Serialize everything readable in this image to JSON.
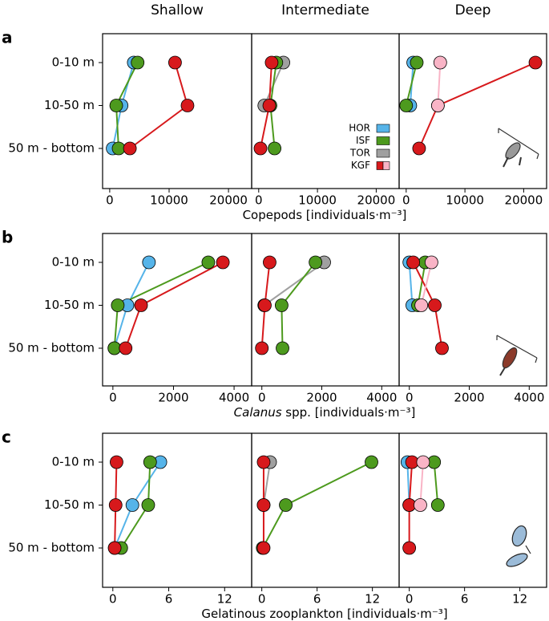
{
  "column_titles": [
    "Shallow",
    "Intermediate",
    "Deep"
  ],
  "chart_data": [
    {
      "type": "line",
      "panel_label": "a",
      "xlabel": [
        {
          "text": "Copepods [individuals·m⁻³]",
          "italic": false
        }
      ],
      "categories": [
        "0-10 m",
        "10-50 m",
        "50 m - bottom"
      ],
      "xlim": [
        -1200,
        23900
      ],
      "xticks": [
        0,
        10000,
        20000
      ],
      "legend": [
        {
          "name": "HOR",
          "colors": [
            "#56b4e9"
          ]
        },
        {
          "name": "ISF",
          "colors": [
            "#4d9a1e"
          ]
        },
        {
          "name": "TOR",
          "colors": [
            "#a0a0a0"
          ]
        },
        {
          "name": "KGF",
          "colors": [
            "#d7191c",
            "#f9b4c6"
          ]
        }
      ],
      "panels": [
        {
          "series": [
            {
              "name": "HOR",
              "color": "#56b4e9",
              "values": [
                4050,
                2000,
                500
              ]
            },
            {
              "name": "ISF",
              "color": "#4d9a1e",
              "values": [
                4700,
                1100,
                1500
              ]
            },
            {
              "name": "KGF",
              "color": "#d7191c",
              "values": [
                11000,
                13100,
                3400
              ]
            }
          ]
        },
        {
          "series": [
            {
              "name": "TOR",
              "color": "#a0a0a0",
              "values": [
                4200,
                950,
                null
              ]
            },
            {
              "name": "ISF",
              "color": "#4d9a1e",
              "values": [
                3000,
                2000,
                2700
              ]
            },
            {
              "name": "KGF",
              "color": "#d7191c",
              "values": [
                2200,
                1800,
                300
              ]
            }
          ]
        },
        {
          "series": [
            {
              "name": "HOR",
              "color": "#56b4e9",
              "values": [
                1200,
                700,
                null
              ]
            },
            {
              "name": "ISF",
              "color": "#4d9a1e",
              "values": [
                1800,
                0,
                null
              ]
            },
            {
              "name": "KGF",
              "color": "#d7191c",
              "values": [
                22000,
                5400,
                2200
              ]
            },
            {
              "name": "KGF",
              "color": "#f9b4c6",
              "values": [
                5800,
                5400,
                null
              ]
            }
          ]
        }
      ]
    },
    {
      "type": "line",
      "panel_label": "b",
      "xlabel": [
        {
          "text": "Calanus",
          "italic": true
        },
        {
          "text": " spp. [individuals·m⁻³]",
          "italic": false
        }
      ],
      "categories": [
        "0-10 m",
        "10-50 m",
        "50 m - bottom"
      ],
      "xlim": [
        -340,
        4580
      ],
      "xticks": [
        0,
        2000,
        4000
      ],
      "panels": [
        {
          "series": [
            {
              "name": "HOR",
              "color": "#56b4e9",
              "values": [
                1190,
                480,
                50
              ]
            },
            {
              "name": "ISF",
              "color": "#4d9a1e",
              "values": [
                3150,
                160,
                50
              ]
            },
            {
              "name": "KGF",
              "color": "#d7191c",
              "values": [
                3630,
                930,
                420
              ]
            }
          ]
        },
        {
          "series": [
            {
              "name": "TOR",
              "color": "#a0a0a0",
              "values": [
                2080,
                80,
                null
              ]
            },
            {
              "name": "ISF",
              "color": "#4d9a1e",
              "values": [
                1790,
                660,
                690
              ]
            },
            {
              "name": "KGF",
              "color": "#d7191c",
              "values": [
                260,
                100,
                0
              ]
            }
          ]
        },
        {
          "series": [
            {
              "name": "HOR",
              "color": "#56b4e9",
              "values": [
                0,
                100,
                null
              ]
            },
            {
              "name": "ISF",
              "color": "#4d9a1e",
              "values": [
                530,
                290,
                null
              ]
            },
            {
              "name": "KGF",
              "color": "#d7191c",
              "values": [
                130,
                850,
                1090
              ]
            },
            {
              "name": "KGF",
              "color": "#f9b4c6",
              "values": [
                740,
                400,
                null
              ]
            }
          ]
        }
      ]
    },
    {
      "type": "line",
      "panel_label": "c",
      "xlabel": [
        {
          "text": "Gelatinous zooplankton [individuals·m⁻³]",
          "italic": false
        }
      ],
      "categories": [
        "0-10 m",
        "10-50 m",
        "50 m - bottom"
      ],
      "xlim": [
        -1.1,
        14.9
      ],
      "xticks": [
        0,
        6,
        12
      ],
      "panels": [
        {
          "series": [
            {
              "name": "HOR",
              "color": "#56b4e9",
              "values": [
                5.1,
                2.1,
                0.2
              ]
            },
            {
              "name": "ISF",
              "color": "#4d9a1e",
              "values": [
                4.0,
                3.8,
                0.9
              ]
            },
            {
              "name": "KGF",
              "color": "#d7191c",
              "values": [
                0.4,
                0.3,
                0.2
              ]
            }
          ]
        },
        {
          "series": [
            {
              "name": "TOR",
              "color": "#a0a0a0",
              "values": [
                0.9,
                0.2,
                null
              ]
            },
            {
              "name": "ISF",
              "color": "#4d9a1e",
              "values": [
                11.9,
                2.6,
                0.1
              ]
            },
            {
              "name": "KGF",
              "color": "#d7191c",
              "values": [
                0.2,
                0.2,
                0.2
              ]
            }
          ]
        },
        {
          "series": [
            {
              "name": "HOR",
              "color": "#56b4e9",
              "values": [
                -0.2,
                0,
                null
              ]
            },
            {
              "name": "ISF",
              "color": "#4d9a1e",
              "values": [
                2.7,
                3.1,
                null
              ]
            },
            {
              "name": "KGF",
              "color": "#d7191c",
              "values": [
                0.3,
                0,
                0
              ]
            },
            {
              "name": "KGF",
              "color": "#f9b4c6",
              "values": [
                1.5,
                1.2,
                null
              ]
            }
          ]
        }
      ]
    }
  ]
}
